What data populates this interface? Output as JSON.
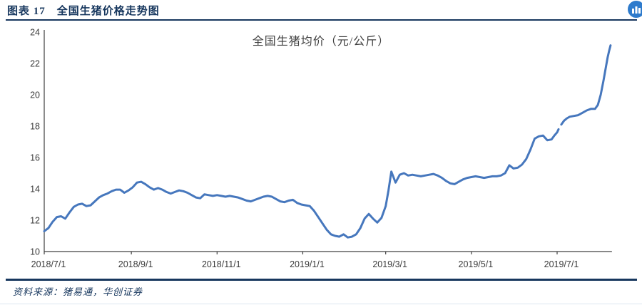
{
  "header": {
    "caption": "图表 17　全国生猪价格走势图",
    "badge_icon": "bar-chart-badge"
  },
  "footer": {
    "source": "资料来源：猪易通，华创证券"
  },
  "colors": {
    "navy": "#17375E",
    "line_blue": "#4677BD",
    "axis_text": "#3a3a3a",
    "axis_line": "#404040",
    "icon_blue": "#2E7BCC"
  },
  "chart_data": {
    "type": "line",
    "title": "全国生猪均价（元/公斤）",
    "xlabel": "",
    "ylabel": "",
    "ylim": [
      10,
      24
    ],
    "yticks": [
      10,
      12,
      14,
      16,
      18,
      20,
      22,
      24
    ],
    "xticks": [
      "2018/7/1",
      "2018/9/1",
      "2018/11/1",
      "2019/1/1",
      "2019/3/1",
      "2019/5/1",
      "2019/7/1"
    ],
    "x_start": "2018/7/1",
    "x_end": "2019/8/8",
    "grid": false,
    "legend": "none",
    "line_width": 3,
    "data_gap": [
      "2019/7/2",
      "2019/7/4"
    ],
    "series": [
      {
        "name": "全国生猪均价（元/公斤）",
        "color": "#4677BD",
        "points": [
          [
            "2018/7/1",
            11.3
          ],
          [
            "2018/7/4",
            11.5
          ],
          [
            "2018/7/7",
            11.9
          ],
          [
            "2018/7/10",
            12.2
          ],
          [
            "2018/7/13",
            12.25
          ],
          [
            "2018/7/16",
            12.1
          ],
          [
            "2018/7/19",
            12.5
          ],
          [
            "2018/7/22",
            12.85
          ],
          [
            "2018/7/25",
            13.0
          ],
          [
            "2018/7/28",
            13.05
          ],
          [
            "2018/7/31",
            12.9
          ],
          [
            "2018/8/3",
            12.95
          ],
          [
            "2018/8/6",
            13.2
          ],
          [
            "2018/8/9",
            13.45
          ],
          [
            "2018/8/12",
            13.6
          ],
          [
            "2018/8/15",
            13.7
          ],
          [
            "2018/8/18",
            13.85
          ],
          [
            "2018/8/21",
            13.95
          ],
          [
            "2018/8/24",
            13.95
          ],
          [
            "2018/8/27",
            13.75
          ],
          [
            "2018/8/30",
            13.9
          ],
          [
            "2018/9/2",
            14.1
          ],
          [
            "2018/9/5",
            14.4
          ],
          [
            "2018/9/8",
            14.45
          ],
          [
            "2018/9/11",
            14.3
          ],
          [
            "2018/9/14",
            14.1
          ],
          [
            "2018/9/17",
            13.95
          ],
          [
            "2018/9/20",
            14.05
          ],
          [
            "2018/9/23",
            13.95
          ],
          [
            "2018/9/26",
            13.8
          ],
          [
            "2018/9/29",
            13.7
          ],
          [
            "2018/10/2",
            13.8
          ],
          [
            "2018/10/5",
            13.9
          ],
          [
            "2018/10/8",
            13.85
          ],
          [
            "2018/10/11",
            13.75
          ],
          [
            "2018/10/14",
            13.6
          ],
          [
            "2018/10/17",
            13.45
          ],
          [
            "2018/10/20",
            13.4
          ],
          [
            "2018/10/23",
            13.65
          ],
          [
            "2018/10/26",
            13.6
          ],
          [
            "2018/10/29",
            13.55
          ],
          [
            "2018/11/1",
            13.6
          ],
          [
            "2018/11/4",
            13.55
          ],
          [
            "2018/11/7",
            13.5
          ],
          [
            "2018/11/10",
            13.55
          ],
          [
            "2018/11/13",
            13.5
          ],
          [
            "2018/11/16",
            13.45
          ],
          [
            "2018/11/19",
            13.35
          ],
          [
            "2018/11/22",
            13.25
          ],
          [
            "2018/11/25",
            13.2
          ],
          [
            "2018/11/28",
            13.3
          ],
          [
            "2018/12/1",
            13.4
          ],
          [
            "2018/12/4",
            13.5
          ],
          [
            "2018/12/7",
            13.55
          ],
          [
            "2018/12/10",
            13.5
          ],
          [
            "2018/12/13",
            13.35
          ],
          [
            "2018/12/16",
            13.2
          ],
          [
            "2018/12/19",
            13.15
          ],
          [
            "2018/12/22",
            13.25
          ],
          [
            "2018/12/25",
            13.3
          ],
          [
            "2018/12/28",
            13.1
          ],
          [
            "2018/12/31",
            13.0
          ],
          [
            "2019/1/3",
            12.95
          ],
          [
            "2019/1/6",
            12.9
          ],
          [
            "2019/1/9",
            12.6
          ],
          [
            "2019/1/12",
            12.2
          ],
          [
            "2019/1/15",
            11.8
          ],
          [
            "2019/1/18",
            11.4
          ],
          [
            "2019/1/21",
            11.1
          ],
          [
            "2019/1/24",
            11.0
          ],
          [
            "2019/1/27",
            10.95
          ],
          [
            "2019/1/30",
            11.1
          ],
          [
            "2019/2/2",
            10.9
          ],
          [
            "2019/2/5",
            10.95
          ],
          [
            "2019/2/8",
            11.1
          ],
          [
            "2019/2/11",
            11.5
          ],
          [
            "2019/2/14",
            12.1
          ],
          [
            "2019/2/17",
            12.4
          ],
          [
            "2019/2/20",
            12.1
          ],
          [
            "2019/2/23",
            11.85
          ],
          [
            "2019/2/26",
            12.15
          ],
          [
            "2019/3/1",
            12.9
          ],
          [
            "2019/3/3",
            13.9
          ],
          [
            "2019/3/5",
            15.1
          ],
          [
            "2019/3/8",
            14.4
          ],
          [
            "2019/3/11",
            14.9
          ],
          [
            "2019/3/14",
            15.0
          ],
          [
            "2019/3/17",
            14.85
          ],
          [
            "2019/3/20",
            14.9
          ],
          [
            "2019/3/23",
            14.85
          ],
          [
            "2019/3/26",
            14.8
          ],
          [
            "2019/3/29",
            14.85
          ],
          [
            "2019/4/1",
            14.9
          ],
          [
            "2019/4/4",
            14.95
          ],
          [
            "2019/4/7",
            14.85
          ],
          [
            "2019/4/10",
            14.7
          ],
          [
            "2019/4/13",
            14.5
          ],
          [
            "2019/4/16",
            14.35
          ],
          [
            "2019/4/19",
            14.3
          ],
          [
            "2019/4/22",
            14.45
          ],
          [
            "2019/4/25",
            14.6
          ],
          [
            "2019/4/28",
            14.7
          ],
          [
            "2019/5/1",
            14.75
          ],
          [
            "2019/5/4",
            14.8
          ],
          [
            "2019/5/7",
            14.75
          ],
          [
            "2019/5/10",
            14.7
          ],
          [
            "2019/5/13",
            14.75
          ],
          [
            "2019/5/16",
            14.8
          ],
          [
            "2019/5/19",
            14.8
          ],
          [
            "2019/5/22",
            14.85
          ],
          [
            "2019/5/25",
            15.0
          ],
          [
            "2019/5/28",
            15.5
          ],
          [
            "2019/5/31",
            15.3
          ],
          [
            "2019/6/3",
            15.35
          ],
          [
            "2019/6/6",
            15.55
          ],
          [
            "2019/6/9",
            15.9
          ],
          [
            "2019/6/12",
            16.5
          ],
          [
            "2019/6/15",
            17.2
          ],
          [
            "2019/6/18",
            17.35
          ],
          [
            "2019/6/21",
            17.4
          ],
          [
            "2019/6/24",
            17.1
          ],
          [
            "2019/6/27",
            17.15
          ],
          [
            "2019/6/29",
            17.4
          ],
          [
            "2019/7/1",
            17.6
          ],
          [
            "2019/7/2",
            17.8
          ],
          [
            "2019/7/3",
            null
          ],
          [
            "2019/7/4",
            18.1
          ],
          [
            "2019/7/6",
            18.35
          ],
          [
            "2019/7/8",
            18.5
          ],
          [
            "2019/7/10",
            18.6
          ],
          [
            "2019/7/13",
            18.65
          ],
          [
            "2019/7/16",
            18.7
          ],
          [
            "2019/7/19",
            18.85
          ],
          [
            "2019/7/22",
            19.0
          ],
          [
            "2019/7/25",
            19.1
          ],
          [
            "2019/7/28",
            19.1
          ],
          [
            "2019/7/30",
            19.35
          ],
          [
            "2019/8/1",
            20.0
          ],
          [
            "2019/8/3",
            20.9
          ],
          [
            "2019/8/5",
            21.9
          ],
          [
            "2019/8/6",
            22.4
          ],
          [
            "2019/8/7",
            22.8
          ],
          [
            "2019/8/8",
            23.15
          ]
        ]
      }
    ]
  }
}
